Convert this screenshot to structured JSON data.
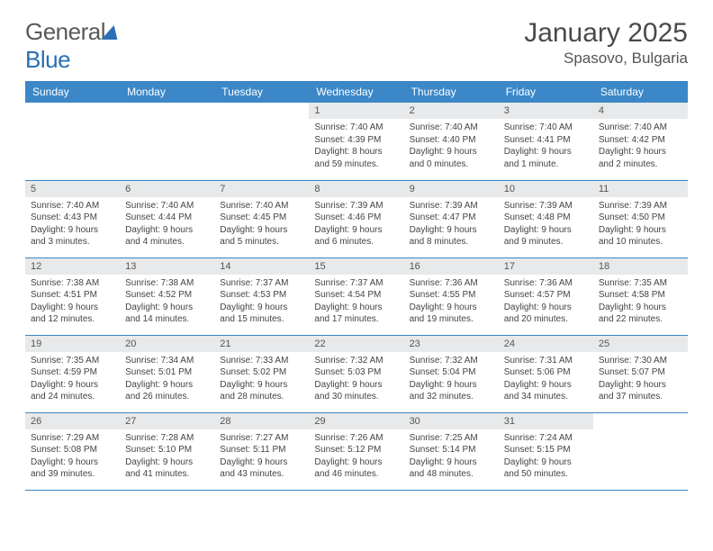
{
  "brand": {
    "part1": "General",
    "part2": "Blue"
  },
  "title": "January 2025",
  "location": "Spasovo, Bulgaria",
  "colors": {
    "header_bg": "#3b87c8",
    "header_fg": "#ffffff",
    "daynum_bg": "#e8e9ea",
    "rule": "#3b87c8",
    "brand_accent": "#2a6fb5",
    "text": "#444444"
  },
  "typography": {
    "title_fontsize": 30,
    "location_fontsize": 17,
    "weekday_fontsize": 12,
    "daynum_fontsize": 11,
    "body_fontsize": 10
  },
  "weekdays": [
    "Sunday",
    "Monday",
    "Tuesday",
    "Wednesday",
    "Thursday",
    "Friday",
    "Saturday"
  ],
  "weeks": [
    [
      {
        "n": "",
        "sunrise": "",
        "sunset": "",
        "day_h": "",
        "day_m": "",
        "empty": true
      },
      {
        "n": "",
        "sunrise": "",
        "sunset": "",
        "day_h": "",
        "day_m": "",
        "empty": true
      },
      {
        "n": "",
        "sunrise": "",
        "sunset": "",
        "day_h": "",
        "day_m": "",
        "empty": true
      },
      {
        "n": "1",
        "sunrise": "7:40 AM",
        "sunset": "4:39 PM",
        "day_h": "8",
        "day_m": "59"
      },
      {
        "n": "2",
        "sunrise": "7:40 AM",
        "sunset": "4:40 PM",
        "day_h": "9",
        "day_m": "0"
      },
      {
        "n": "3",
        "sunrise": "7:40 AM",
        "sunset": "4:41 PM",
        "day_h": "9",
        "day_m": "1",
        "minute_singular": true
      },
      {
        "n": "4",
        "sunrise": "7:40 AM",
        "sunset": "4:42 PM",
        "day_h": "9",
        "day_m": "2"
      }
    ],
    [
      {
        "n": "5",
        "sunrise": "7:40 AM",
        "sunset": "4:43 PM",
        "day_h": "9",
        "day_m": "3"
      },
      {
        "n": "6",
        "sunrise": "7:40 AM",
        "sunset": "4:44 PM",
        "day_h": "9",
        "day_m": "4"
      },
      {
        "n": "7",
        "sunrise": "7:40 AM",
        "sunset": "4:45 PM",
        "day_h": "9",
        "day_m": "5"
      },
      {
        "n": "8",
        "sunrise": "7:39 AM",
        "sunset": "4:46 PM",
        "day_h": "9",
        "day_m": "6"
      },
      {
        "n": "9",
        "sunrise": "7:39 AM",
        "sunset": "4:47 PM",
        "day_h": "9",
        "day_m": "8"
      },
      {
        "n": "10",
        "sunrise": "7:39 AM",
        "sunset": "4:48 PM",
        "day_h": "9",
        "day_m": "9"
      },
      {
        "n": "11",
        "sunrise": "7:39 AM",
        "sunset": "4:50 PM",
        "day_h": "9",
        "day_m": "10"
      }
    ],
    [
      {
        "n": "12",
        "sunrise": "7:38 AM",
        "sunset": "4:51 PM",
        "day_h": "9",
        "day_m": "12"
      },
      {
        "n": "13",
        "sunrise": "7:38 AM",
        "sunset": "4:52 PM",
        "day_h": "9",
        "day_m": "14"
      },
      {
        "n": "14",
        "sunrise": "7:37 AM",
        "sunset": "4:53 PM",
        "day_h": "9",
        "day_m": "15"
      },
      {
        "n": "15",
        "sunrise": "7:37 AM",
        "sunset": "4:54 PM",
        "day_h": "9",
        "day_m": "17"
      },
      {
        "n": "16",
        "sunrise": "7:36 AM",
        "sunset": "4:55 PM",
        "day_h": "9",
        "day_m": "19"
      },
      {
        "n": "17",
        "sunrise": "7:36 AM",
        "sunset": "4:57 PM",
        "day_h": "9",
        "day_m": "20"
      },
      {
        "n": "18",
        "sunrise": "7:35 AM",
        "sunset": "4:58 PM",
        "day_h": "9",
        "day_m": "22"
      }
    ],
    [
      {
        "n": "19",
        "sunrise": "7:35 AM",
        "sunset": "4:59 PM",
        "day_h": "9",
        "day_m": "24"
      },
      {
        "n": "20",
        "sunrise": "7:34 AM",
        "sunset": "5:01 PM",
        "day_h": "9",
        "day_m": "26"
      },
      {
        "n": "21",
        "sunrise": "7:33 AM",
        "sunset": "5:02 PM",
        "day_h": "9",
        "day_m": "28"
      },
      {
        "n": "22",
        "sunrise": "7:32 AM",
        "sunset": "5:03 PM",
        "day_h": "9",
        "day_m": "30"
      },
      {
        "n": "23",
        "sunrise": "7:32 AM",
        "sunset": "5:04 PM",
        "day_h": "9",
        "day_m": "32"
      },
      {
        "n": "24",
        "sunrise": "7:31 AM",
        "sunset": "5:06 PM",
        "day_h": "9",
        "day_m": "34"
      },
      {
        "n": "25",
        "sunrise": "7:30 AM",
        "sunset": "5:07 PM",
        "day_h": "9",
        "day_m": "37"
      }
    ],
    [
      {
        "n": "26",
        "sunrise": "7:29 AM",
        "sunset": "5:08 PM",
        "day_h": "9",
        "day_m": "39"
      },
      {
        "n": "27",
        "sunrise": "7:28 AM",
        "sunset": "5:10 PM",
        "day_h": "9",
        "day_m": "41"
      },
      {
        "n": "28",
        "sunrise": "7:27 AM",
        "sunset": "5:11 PM",
        "day_h": "9",
        "day_m": "43"
      },
      {
        "n": "29",
        "sunrise": "7:26 AM",
        "sunset": "5:12 PM",
        "day_h": "9",
        "day_m": "46"
      },
      {
        "n": "30",
        "sunrise": "7:25 AM",
        "sunset": "5:14 PM",
        "day_h": "9",
        "day_m": "48"
      },
      {
        "n": "31",
        "sunrise": "7:24 AM",
        "sunset": "5:15 PM",
        "day_h": "9",
        "day_m": "50"
      },
      {
        "n": "",
        "sunrise": "",
        "sunset": "",
        "day_h": "",
        "day_m": "",
        "empty": true
      }
    ]
  ],
  "labels": {
    "sunrise": "Sunrise:",
    "sunset": "Sunset:",
    "daylight": "Daylight:",
    "hours": "hours",
    "and": "and",
    "minutes": "minutes.",
    "minute": "minute."
  }
}
